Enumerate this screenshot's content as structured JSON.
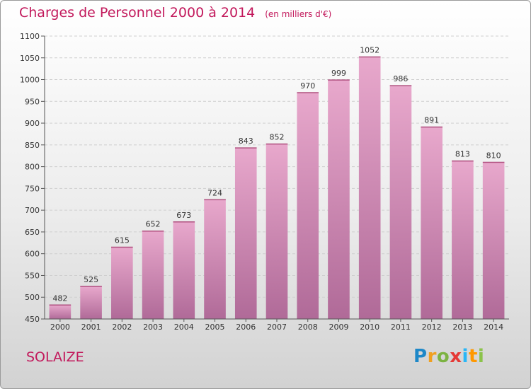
{
  "header": {
    "title": "Charges de Personnel 2000 à 2014",
    "subtitle": "(en milliers d'€)"
  },
  "footer": {
    "city": "SOLAIZE",
    "logo": [
      "P",
      "r",
      "o",
      "x",
      "i",
      "t",
      "i"
    ]
  },
  "colors": {
    "accent": "#c2185b",
    "bar_top": "#e8a8cc",
    "bar_bottom": "#b06a98"
  },
  "chart_data": {
    "type": "bar",
    "title": "Charges de Personnel 2000 à 2014",
    "subtitle": "(en milliers d'€)",
    "xlabel": "",
    "ylabel": "",
    "categories": [
      "2000",
      "2001",
      "2002",
      "2003",
      "2004",
      "2005",
      "2006",
      "2007",
      "2008",
      "2009",
      "2010",
      "2011",
      "2012",
      "2013",
      "2014"
    ],
    "values": [
      482,
      525,
      615,
      652,
      673,
      724,
      843,
      852,
      970,
      999,
      1052,
      986,
      891,
      813,
      810
    ],
    "ylim": [
      450,
      1100
    ],
    "yticks": [
      450,
      500,
      550,
      600,
      650,
      700,
      750,
      800,
      850,
      900,
      950,
      1000,
      1050,
      1100
    ],
    "grid": true
  }
}
